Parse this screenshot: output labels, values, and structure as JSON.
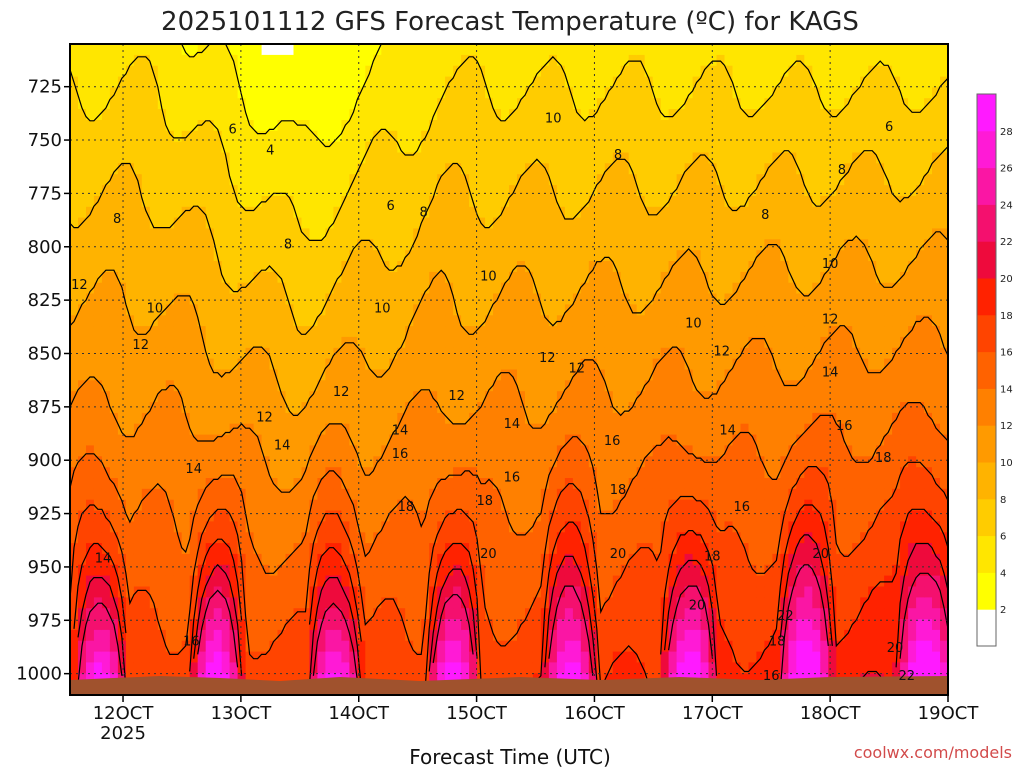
{
  "chart_data": {
    "type": "heatmap",
    "title": "2025101112 GFS Forecast Temperature (ºC) for KAGS",
    "xlabel": "Forecast Time (UTC)",
    "credit": "coolwx.com/models",
    "x_ticks": [
      "12OCT",
      "13OCT",
      "14OCT",
      "15OCT",
      "16OCT",
      "17OCT",
      "18OCT",
      "19OCT"
    ],
    "x_subtick": "2025",
    "x_domain_days": [
      11.55,
      19.0
    ],
    "y_ticks": [
      725,
      750,
      775,
      800,
      825,
      850,
      875,
      900,
      925,
      950,
      975,
      1000
    ],
    "y_range_hpa": [
      705,
      1010
    ],
    "colorbar": {
      "levels": [
        2,
        4,
        6,
        8,
        10,
        12,
        14,
        16,
        18,
        20,
        22,
        24,
        26,
        28
      ],
      "colors": [
        "#ffffff",
        "#ffff00",
        "#ffe600",
        "#ffcc00",
        "#ffb300",
        "#ff9a00",
        "#ff8000",
        "#ff6200",
        "#ff4400",
        "#ff2200",
        "#ee0a3c",
        "#f4106e",
        "#fa16a4",
        "#ff1ad6",
        "#ff1aff"
      ]
    },
    "contour_labels": [
      {
        "value": "12",
        "day": 11.63,
        "p": 818
      },
      {
        "value": "8",
        "day": 11.95,
        "p": 787
      },
      {
        "value": "10",
        "day": 12.27,
        "p": 829
      },
      {
        "value": "12",
        "day": 12.15,
        "p": 846
      },
      {
        "value": "14",
        "day": 12.6,
        "p": 904
      },
      {
        "value": "14",
        "day": 11.83,
        "p": 946
      },
      {
        "value": "16",
        "day": 12.58,
        "p": 985
      },
      {
        "value": "12",
        "day": 13.2,
        "p": 880
      },
      {
        "value": "14",
        "day": 13.35,
        "p": 893
      },
      {
        "value": "6",
        "day": 12.93,
        "p": 745
      },
      {
        "value": "4",
        "day": 13.25,
        "p": 755
      },
      {
        "value": "8",
        "day": 13.4,
        "p": 799
      },
      {
        "value": "6",
        "day": 14.27,
        "p": 781
      },
      {
        "value": "8",
        "day": 14.55,
        "p": 784
      },
      {
        "value": "10",
        "day": 14.2,
        "p": 829
      },
      {
        "value": "12",
        "day": 13.85,
        "p": 868
      },
      {
        "value": "14",
        "day": 14.35,
        "p": 886
      },
      {
        "value": "16",
        "day": 14.35,
        "p": 897
      },
      {
        "value": "18",
        "day": 14.4,
        "p": 922
      },
      {
        "value": "12",
        "day": 14.83,
        "p": 870
      },
      {
        "value": "10",
        "day": 15.1,
        "p": 814
      },
      {
        "value": "14",
        "day": 15.3,
        "p": 883
      },
      {
        "value": "16",
        "day": 15.3,
        "p": 908
      },
      {
        "value": "18",
        "day": 15.07,
        "p": 919
      },
      {
        "value": "20",
        "day": 15.1,
        "p": 944
      },
      {
        "value": "10",
        "day": 15.65,
        "p": 740
      },
      {
        "value": "12",
        "day": 15.6,
        "p": 852
      },
      {
        "value": "12",
        "day": 15.85,
        "p": 857
      },
      {
        "value": "8",
        "day": 16.2,
        "p": 757
      },
      {
        "value": "16",
        "day": 16.15,
        "p": 891
      },
      {
        "value": "18",
        "day": 16.2,
        "p": 914
      },
      {
        "value": "20",
        "day": 16.2,
        "p": 944
      },
      {
        "value": "20",
        "day": 16.87,
        "p": 968
      },
      {
        "value": "18",
        "day": 17.0,
        "p": 945
      },
      {
        "value": "16",
        "day": 17.25,
        "p": 922
      },
      {
        "value": "14",
        "day": 17.13,
        "p": 886
      },
      {
        "value": "12",
        "day": 17.08,
        "p": 849
      },
      {
        "value": "10",
        "day": 16.84,
        "p": 836
      },
      {
        "value": "8",
        "day": 17.45,
        "p": 785
      },
      {
        "value": "10",
        "day": 18.0,
        "p": 808
      },
      {
        "value": "12",
        "day": 18.0,
        "p": 834
      },
      {
        "value": "14",
        "day": 18.0,
        "p": 859
      },
      {
        "value": "16",
        "day": 18.12,
        "p": 884
      },
      {
        "value": "18",
        "day": 18.45,
        "p": 899
      },
      {
        "value": "20",
        "day": 17.92,
        "p": 944
      },
      {
        "value": "22",
        "day": 17.62,
        "p": 973
      },
      {
        "value": "18",
        "day": 17.55,
        "p": 985
      },
      {
        "value": "16",
        "day": 17.5,
        "p": 1001
      },
      {
        "value": "8",
        "day": 18.1,
        "p": 764
      },
      {
        "value": "6",
        "day": 18.5,
        "p": 744
      },
      {
        "value": "20",
        "day": 18.55,
        "p": 988
      },
      {
        "value": "22",
        "day": 18.65,
        "p": 1001
      }
    ]
  }
}
